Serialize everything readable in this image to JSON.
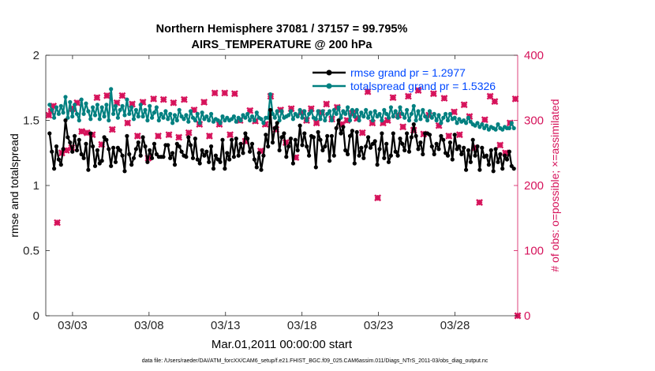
{
  "colors": {
    "rmse": "#000000",
    "spread": "#008080",
    "obs": "#d6135b",
    "legend_text": "#0048ff"
  },
  "chart_data": {
    "type": "line",
    "title_line1": "Northern Hemisphere 37081 / 37157 = 99.795%",
    "title_line2": "AIRS_TEMPERATURE @ 200 hPa",
    "xlabel": "Mar.01,2011 00:00:00 start",
    "ylabel_left": "rmse and totalspread",
    "ylabel_right": "# of obs: o=possible; ×=assimilated",
    "footnote": "data file: /Users/raeder/DAI/ATM_forcXX/CAM6_setup/f.e21.FHIST_BGC.f09_025.CAM6assim.011/Diags_NTrS_2011-03/obs_diag_output.nc",
    "xlim": [
      1.25,
      32.1
    ],
    "ylim_left": [
      0,
      2
    ],
    "ylim_right": [
      0,
      400
    ],
    "x_ticks": [
      3,
      8,
      13,
      18,
      23,
      28
    ],
    "x_tick_labels": [
      "03/03",
      "03/08",
      "03/13",
      "03/18",
      "03/23",
      "03/28"
    ],
    "y_ticks_left": [
      0,
      0.5,
      1,
      1.5,
      2
    ],
    "y_tick_labels_left": [
      "0",
      "0.5",
      "1",
      "1.5",
      "2"
    ],
    "y_ticks_right": [
      0,
      100,
      200,
      300,
      400
    ],
    "y_tick_labels_right": [
      "0",
      "100",
      "200",
      "300",
      "400"
    ],
    "legend_placement": "top-right",
    "series": [
      {
        "name": "rmse grand pr = 1.2977",
        "values": [
          1.4,
          1.26,
          1.13,
          1.3,
          1.2,
          1.16,
          1.28,
          1.5,
          1.37,
          1.33,
          1.26,
          1.38,
          1.27,
          1.35,
          1.24,
          1.21,
          1.32,
          1.12,
          1.4,
          1.3,
          1.15,
          1.27,
          1.17,
          1.19,
          1.37,
          1.35,
          1.28,
          1.15,
          1.29,
          1.18,
          1.29,
          1.27,
          1.23,
          1.11,
          1.38,
          1.24,
          1.16,
          1.21,
          1.28,
          1.33,
          1.23,
          1.37,
          1.3,
          1.18,
          1.27,
          1.21,
          1.32,
          1.24,
          1.22,
          1.22,
          1.22,
          1.31,
          1.31,
          1.21,
          1.25,
          1.16,
          1.32,
          1.3,
          1.26,
          1.23,
          1.22,
          1.37,
          1.31,
          1.21,
          1.36,
          1.2,
          1.17,
          1.27,
          1.23,
          1.26,
          1.18,
          1.3,
          1.13,
          1.23,
          1.2,
          1.18,
          1.35,
          1.13,
          1.25,
          1.2,
          1.35,
          1.22,
          1.36,
          1.23,
          1.32,
          1.25,
          1.4,
          1.36,
          1.26,
          1.32,
          1.2,
          1.14,
          1.25,
          1.12,
          1.23,
          1.39,
          1.3,
          1.58,
          1.33,
          1.44,
          1.48,
          1.27,
          1.37,
          1.4,
          1.22,
          1.3,
          1.36,
          1.17,
          1.35,
          1.27,
          1.46,
          1.31,
          1.4,
          1.3,
          1.23,
          1.38,
          1.37,
          1.14,
          1.41,
          1.35,
          1.27,
          1.3,
          1.38,
          1.19,
          1.38,
          1.23,
          1.44,
          1.5,
          1.4,
          1.45,
          1.27,
          1.24,
          1.38,
          1.42,
          1.17,
          1.41,
          1.23,
          1.29,
          1.21,
          1.3,
          1.37,
          1.29,
          1.32,
          1.34,
          1.16,
          1.28,
          1.4,
          1.21,
          1.32,
          1.18,
          1.23,
          1.4,
          1.26,
          1.23,
          1.36,
          1.32,
          1.27,
          1.4,
          1.26,
          1.37,
          1.47,
          1.38,
          1.28,
          1.33,
          1.24,
          1.4,
          1.4,
          1.39,
          1.3,
          1.24,
          1.32,
          1.28,
          1.38,
          1.35,
          1.25,
          1.23,
          1.33,
          1.2,
          1.39,
          1.28,
          1.3,
          1.24,
          1.29,
          1.12,
          1.27,
          1.18,
          1.35,
          1.23,
          1.3,
          1.12,
          1.29,
          1.22,
          1.23,
          1.16,
          1.27,
          1.11,
          1.28,
          1.18,
          1.24,
          1.13,
          1.23,
          1.2,
          1.26,
          1.15,
          1.13
        ]
      },
      {
        "name": "totalspread grand pr = 1.5326",
        "values": [
          1.62,
          1.58,
          1.52,
          1.6,
          1.55,
          1.61,
          1.56,
          1.68,
          1.52,
          1.64,
          1.53,
          1.62,
          1.55,
          1.5,
          1.66,
          1.55,
          1.63,
          1.57,
          1.51,
          1.6,
          1.54,
          1.62,
          1.51,
          1.6,
          1.53,
          1.62,
          1.5,
          1.74,
          1.55,
          1.61,
          1.52,
          1.58,
          1.61,
          1.54,
          1.66,
          1.55,
          1.6,
          1.51,
          1.58,
          1.53,
          1.62,
          1.53,
          1.58,
          1.5,
          1.61,
          1.52,
          1.56,
          1.6,
          1.5,
          1.55,
          1.52,
          1.57,
          1.51,
          1.55,
          1.48,
          1.54,
          1.5,
          1.58,
          1.53,
          1.51,
          1.54,
          1.49,
          1.57,
          1.52,
          1.5,
          1.55,
          1.48,
          1.56,
          1.51,
          1.53,
          1.5,
          1.55,
          1.49,
          1.51,
          1.5,
          1.48,
          1.53,
          1.5,
          1.52,
          1.5,
          1.51,
          1.53,
          1.49,
          1.52,
          1.5,
          1.54,
          1.52,
          1.55,
          1.5,
          1.53,
          1.5,
          1.56,
          1.52,
          1.51,
          1.48,
          1.52,
          1.52,
          1.7,
          1.55,
          1.52,
          1.57,
          1.5,
          1.57,
          1.52,
          1.53,
          1.54,
          1.57,
          1.51,
          1.55,
          1.53,
          1.58,
          1.52,
          1.57,
          1.5,
          1.55,
          1.57,
          1.52,
          1.51,
          1.57,
          1.51,
          1.57,
          1.5,
          1.55,
          1.57,
          1.5,
          1.58,
          1.55,
          1.6,
          1.52,
          1.57,
          1.55,
          1.6,
          1.5,
          1.58,
          1.53,
          1.58,
          1.5,
          1.56,
          1.53,
          1.58,
          1.52,
          1.56,
          1.5,
          1.57,
          1.53,
          1.55,
          1.5,
          1.58,
          1.55,
          1.52,
          1.6,
          1.53,
          1.57,
          1.52,
          1.6,
          1.55,
          1.52,
          1.58,
          1.5,
          1.55,
          1.61,
          1.5,
          1.57,
          1.51,
          1.58,
          1.53,
          1.5,
          1.57,
          1.52,
          1.55,
          1.5,
          1.54,
          1.48,
          1.52,
          1.55,
          1.5,
          1.55,
          1.51,
          1.52,
          1.48,
          1.51,
          1.49,
          1.5,
          1.48,
          1.52,
          1.49,
          1.47,
          1.46,
          1.48,
          1.45,
          1.47,
          1.44,
          1.46,
          1.43,
          1.45,
          1.44,
          1.43,
          1.47,
          1.44,
          1.43,
          1.45,
          1.44,
          1.44,
          1.48,
          1.44
        ]
      }
    ],
    "obs_points": [
      {
        "x": 1.45,
        "y": 308
      },
      {
        "x": 1.6,
        "y": 314
      },
      {
        "x": 1.75,
        "y": 322
      },
      {
        "x": 2.0,
        "y": 143
      },
      {
        "x": 2.3,
        "y": 250
      },
      {
        "x": 2.6,
        "y": 254
      },
      {
        "x": 2.95,
        "y": 258
      },
      {
        "x": 3.0,
        "y": 318
      },
      {
        "x": 3.3,
        "y": 327
      },
      {
        "x": 3.6,
        "y": 283
      },
      {
        "x": 3.95,
        "y": 281
      },
      {
        "x": 4.3,
        "y": 278
      },
      {
        "x": 4.6,
        "y": 335
      },
      {
        "x": 4.9,
        "y": 263
      },
      {
        "x": 5.25,
        "y": 338
      },
      {
        "x": 5.6,
        "y": 286
      },
      {
        "x": 5.9,
        "y": 327
      },
      {
        "x": 6.25,
        "y": 338
      },
      {
        "x": 6.6,
        "y": 296
      },
      {
        "x": 6.9,
        "y": 325
      },
      {
        "x": 7.25,
        "y": 276
      },
      {
        "x": 7.6,
        "y": 328
      },
      {
        "x": 7.95,
        "y": 242
      },
      {
        "x": 8.3,
        "y": 333
      },
      {
        "x": 8.6,
        "y": 276
      },
      {
        "x": 8.95,
        "y": 332
      },
      {
        "x": 9.3,
        "y": 278
      },
      {
        "x": 9.6,
        "y": 327
      },
      {
        "x": 9.95,
        "y": 274
      },
      {
        "x": 10.3,
        "y": 332
      },
      {
        "x": 10.6,
        "y": 281
      },
      {
        "x": 10.95,
        "y": 316
      },
      {
        "x": 11.3,
        "y": 294
      },
      {
        "x": 11.6,
        "y": 328
      },
      {
        "x": 11.95,
        "y": 276
      },
      {
        "x": 12.3,
        "y": 342
      },
      {
        "x": 12.6,
        "y": 294
      },
      {
        "x": 12.95,
        "y": 342
      },
      {
        "x": 13.3,
        "y": 278
      },
      {
        "x": 13.6,
        "y": 341
      },
      {
        "x": 13.95,
        "y": 300
      },
      {
        "x": 14.3,
        "y": 268
      },
      {
        "x": 14.6,
        "y": 315
      },
      {
        "x": 14.95,
        "y": 299
      },
      {
        "x": 15.3,
        "y": 253
      },
      {
        "x": 15.6,
        "y": 294
      },
      {
        "x": 15.95,
        "y": 337
      },
      {
        "x": 16.3,
        "y": 286
      },
      {
        "x": 16.6,
        "y": 316
      },
      {
        "x": 16.95,
        "y": 266
      },
      {
        "x": 17.3,
        "y": 318
      },
      {
        "x": 17.6,
        "y": 243
      },
      {
        "x": 17.95,
        "y": 312
      },
      {
        "x": 18.3,
        "y": 300
      },
      {
        "x": 18.6,
        "y": 318
      },
      {
        "x": 18.95,
        "y": 296
      },
      {
        "x": 19.3,
        "y": 312
      },
      {
        "x": 19.6,
        "y": 325
      },
      {
        "x": 19.95,
        "y": 302
      },
      {
        "x": 20.3,
        "y": 320
      },
      {
        "x": 20.6,
        "y": 294
      },
      {
        "x": 20.95,
        "y": 300
      },
      {
        "x": 21.3,
        "y": 311
      },
      {
        "x": 21.6,
        "y": 303
      },
      {
        "x": 21.95,
        "y": 281
      },
      {
        "x": 22.3,
        "y": 344
      },
      {
        "x": 22.6,
        "y": 296
      },
      {
        "x": 22.95,
        "y": 181
      },
      {
        "x": 23.3,
        "y": 296
      },
      {
        "x": 23.6,
        "y": 300
      },
      {
        "x": 23.95,
        "y": 335
      },
      {
        "x": 24.3,
        "y": 308
      },
      {
        "x": 24.6,
        "y": 290
      },
      {
        "x": 24.95,
        "y": 337
      },
      {
        "x": 25.3,
        "y": 285
      },
      {
        "x": 25.6,
        "y": 346
      },
      {
        "x": 25.95,
        "y": 279
      },
      {
        "x": 26.3,
        "y": 308
      },
      {
        "x": 26.6,
        "y": 341
      },
      {
        "x": 26.95,
        "y": 292
      },
      {
        "x": 27.3,
        "y": 334
      },
      {
        "x": 27.6,
        "y": 276
      },
      {
        "x": 27.95,
        "y": 313
      },
      {
        "x": 28.3,
        "y": 278
      },
      {
        "x": 28.6,
        "y": 324
      },
      {
        "x": 28.95,
        "y": 306
      },
      {
        "x": 29.3,
        "y": 258
      },
      {
        "x": 29.6,
        "y": 174
      },
      {
        "x": 29.95,
        "y": 301
      },
      {
        "x": 30.3,
        "y": 337
      },
      {
        "x": 30.6,
        "y": 329
      },
      {
        "x": 30.95,
        "y": 262
      },
      {
        "x": 31.3,
        "y": 250
      },
      {
        "x": 31.6,
        "y": 296
      },
      {
        "x": 31.95,
        "y": 333
      },
      {
        "x": 32.1,
        "y": 0
      }
    ]
  }
}
